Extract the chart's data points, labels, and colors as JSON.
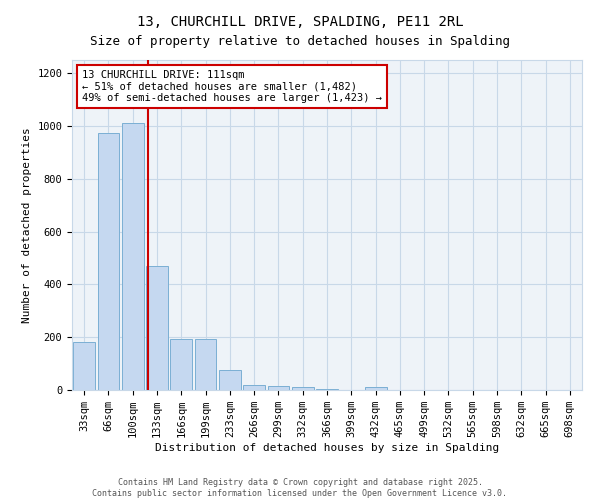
{
  "title_line1": "13, CHURCHILL DRIVE, SPALDING, PE11 2RL",
  "title_line2": "Size of property relative to detached houses in Spalding",
  "xlabel": "Distribution of detached houses by size in Spalding",
  "ylabel": "Number of detached properties",
  "bar_color": "#c5d8f0",
  "bar_edgecolor": "#7bafd4",
  "grid_color": "#c8d8e8",
  "background_color": "#eef3f8",
  "categories": [
    "33sqm",
    "66sqm",
    "100sqm",
    "133sqm",
    "166sqm",
    "199sqm",
    "233sqm",
    "266sqm",
    "299sqm",
    "332sqm",
    "366sqm",
    "399sqm",
    "432sqm",
    "465sqm",
    "499sqm",
    "532sqm",
    "565sqm",
    "598sqm",
    "632sqm",
    "665sqm",
    "698sqm"
  ],
  "values": [
    180,
    975,
    1010,
    470,
    195,
    195,
    75,
    20,
    15,
    10,
    5,
    0,
    10,
    0,
    0,
    0,
    0,
    0,
    0,
    0,
    0
  ],
  "ylim": [
    0,
    1250
  ],
  "yticks": [
    0,
    200,
    400,
    600,
    800,
    1000,
    1200
  ],
  "vline_position": 2.62,
  "vline_color": "#cc0000",
  "annotation_text": "13 CHURCHILL DRIVE: 111sqm\n← 51% of detached houses are smaller (1,482)\n49% of semi-detached houses are larger (1,423) →",
  "annotation_box_color": "white",
  "annotation_box_edgecolor": "#cc0000",
  "footer_line1": "Contains HM Land Registry data © Crown copyright and database right 2025.",
  "footer_line2": "Contains public sector information licensed under the Open Government Licence v3.0.",
  "title_fontsize": 10,
  "subtitle_fontsize": 9,
  "axis_fontsize": 8,
  "tick_fontsize": 7.5,
  "annotation_fontsize": 7.5
}
